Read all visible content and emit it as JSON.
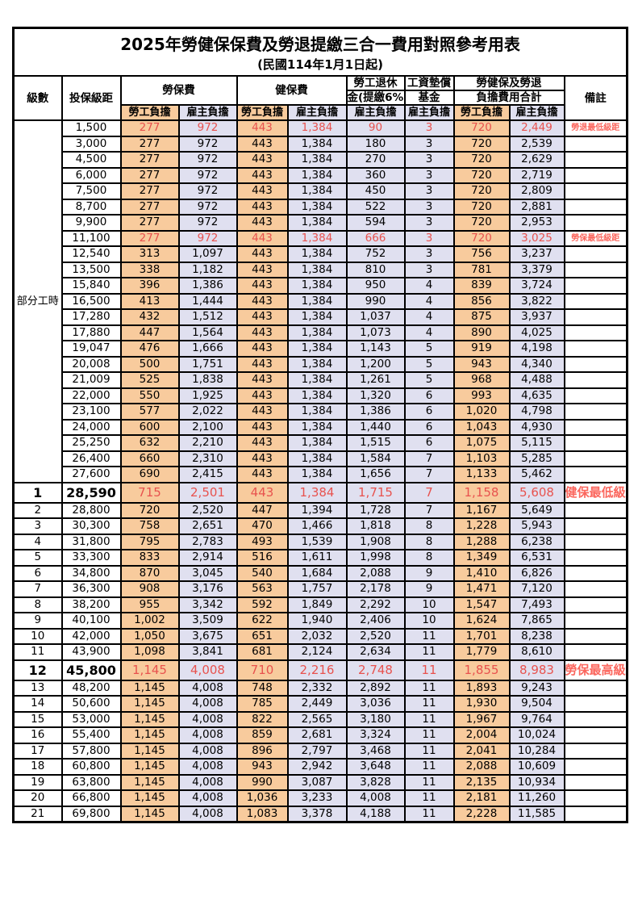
{
  "title": "2025年勞健保保費及勞退提繳三合一費用對照參考用表",
  "subtitle": "(民國114年1月1日起)",
  "header": {
    "level": "級數",
    "bracket": "投保級距",
    "labor_ins": "勞保費",
    "health_ins": "健保費",
    "pension_line1": "勞工退休",
    "pension_line2": "金(提繳6%)",
    "wage_fund_line1": "工資墊償",
    "wage_fund_line2": "基金",
    "total_line1": "勞健保及勞退",
    "total_line2": "負擔費用合計",
    "remark": "備註",
    "employee": "勞工負擔",
    "employer": "雇主負擔"
  },
  "part_time": {
    "label": "部分工時",
    "rowspan": 23
  },
  "colors": {
    "employee_bg": "#f8cb9d",
    "employer_bg": "#e0e0f0",
    "highlight_number": "#e8524e",
    "remark_red": "#fb675e",
    "border": "#000000"
  },
  "rows": [
    {
      "level": "",
      "c": [
        "1,500",
        "277",
        "972",
        "443",
        "1,384",
        "90",
        "3",
        "720",
        "2,449"
      ],
      "remark": "勞退最低級距",
      "red": true,
      "big": false
    },
    {
      "level": "",
      "c": [
        "3,000",
        "277",
        "972",
        "443",
        "1,384",
        "180",
        "3",
        "720",
        "2,539"
      ],
      "remark": "",
      "red": false,
      "big": false
    },
    {
      "level": "",
      "c": [
        "4,500",
        "277",
        "972",
        "443",
        "1,384",
        "270",
        "3",
        "720",
        "2,629"
      ],
      "remark": "",
      "red": false,
      "big": false
    },
    {
      "level": "",
      "c": [
        "6,000",
        "277",
        "972",
        "443",
        "1,384",
        "360",
        "3",
        "720",
        "2,719"
      ],
      "remark": "",
      "red": false,
      "big": false
    },
    {
      "level": "",
      "c": [
        "7,500",
        "277",
        "972",
        "443",
        "1,384",
        "450",
        "3",
        "720",
        "2,809"
      ],
      "remark": "",
      "red": false,
      "big": false
    },
    {
      "level": "",
      "c": [
        "8,700",
        "277",
        "972",
        "443",
        "1,384",
        "522",
        "3",
        "720",
        "2,881"
      ],
      "remark": "",
      "red": false,
      "big": false
    },
    {
      "level": "",
      "c": [
        "9,900",
        "277",
        "972",
        "443",
        "1,384",
        "594",
        "3",
        "720",
        "2,953"
      ],
      "remark": "",
      "red": false,
      "big": false
    },
    {
      "level": "",
      "c": [
        "11,100",
        "277",
        "972",
        "443",
        "1,384",
        "666",
        "3",
        "720",
        "3,025"
      ],
      "remark": "勞保最低級距",
      "red": true,
      "big": false
    },
    {
      "level": "",
      "c": [
        "12,540",
        "313",
        "1,097",
        "443",
        "1,384",
        "752",
        "3",
        "756",
        "3,237"
      ],
      "remark": "",
      "red": false,
      "big": false
    },
    {
      "level": "",
      "c": [
        "13,500",
        "338",
        "1,182",
        "443",
        "1,384",
        "810",
        "3",
        "781",
        "3,379"
      ],
      "remark": "",
      "red": false,
      "big": false
    },
    {
      "level": "",
      "c": [
        "15,840",
        "396",
        "1,386",
        "443",
        "1,384",
        "950",
        "4",
        "839",
        "3,724"
      ],
      "remark": "",
      "red": false,
      "big": false
    },
    {
      "level": "",
      "c": [
        "16,500",
        "413",
        "1,444",
        "443",
        "1,384",
        "990",
        "4",
        "856",
        "3,822"
      ],
      "remark": "",
      "red": false,
      "big": false
    },
    {
      "level": "",
      "c": [
        "17,280",
        "432",
        "1,512",
        "443",
        "1,384",
        "1,037",
        "4",
        "875",
        "3,937"
      ],
      "remark": "",
      "red": false,
      "big": false
    },
    {
      "level": "",
      "c": [
        "17,880",
        "447",
        "1,564",
        "443",
        "1,384",
        "1,073",
        "4",
        "890",
        "4,025"
      ],
      "remark": "",
      "red": false,
      "big": false
    },
    {
      "level": "",
      "c": [
        "19,047",
        "476",
        "1,666",
        "443",
        "1,384",
        "1,143",
        "5",
        "919",
        "4,198"
      ],
      "remark": "",
      "red": false,
      "big": false
    },
    {
      "level": "",
      "c": [
        "20,008",
        "500",
        "1,751",
        "443",
        "1,384",
        "1,200",
        "5",
        "943",
        "4,340"
      ],
      "remark": "",
      "red": false,
      "big": false
    },
    {
      "level": "",
      "c": [
        "21,009",
        "525",
        "1,838",
        "443",
        "1,384",
        "1,261",
        "5",
        "968",
        "4,488"
      ],
      "remark": "",
      "red": false,
      "big": false
    },
    {
      "level": "",
      "c": [
        "22,000",
        "550",
        "1,925",
        "443",
        "1,384",
        "1,320",
        "6",
        "993",
        "4,635"
      ],
      "remark": "",
      "red": false,
      "big": false
    },
    {
      "level": "",
      "c": [
        "23,100",
        "577",
        "2,022",
        "443",
        "1,384",
        "1,386",
        "6",
        "1,020",
        "4,798"
      ],
      "remark": "",
      "red": false,
      "big": false
    },
    {
      "level": "",
      "c": [
        "24,000",
        "600",
        "2,100",
        "443",
        "1,384",
        "1,440",
        "6",
        "1,043",
        "4,930"
      ],
      "remark": "",
      "red": false,
      "big": false
    },
    {
      "level": "",
      "c": [
        "25,250",
        "632",
        "2,210",
        "443",
        "1,384",
        "1,515",
        "6",
        "1,075",
        "5,115"
      ],
      "remark": "",
      "red": false,
      "big": false
    },
    {
      "level": "",
      "c": [
        "26,400",
        "660",
        "2,310",
        "443",
        "1,384",
        "1,584",
        "7",
        "1,103",
        "5,285"
      ],
      "remark": "",
      "red": false,
      "big": false
    },
    {
      "level": "",
      "c": [
        "27,600",
        "690",
        "2,415",
        "443",
        "1,384",
        "1,656",
        "7",
        "1,133",
        "5,462"
      ],
      "remark": "",
      "red": false,
      "big": false
    },
    {
      "level": "1",
      "c": [
        "28,590",
        "715",
        "2,501",
        "443",
        "1,384",
        "1,715",
        "7",
        "1,158",
        "5,608"
      ],
      "remark": "健保最低級距",
      "red": true,
      "big": true
    },
    {
      "level": "2",
      "c": [
        "28,800",
        "720",
        "2,520",
        "447",
        "1,394",
        "1,728",
        "7",
        "1,167",
        "5,649"
      ],
      "remark": "",
      "red": false,
      "big": false
    },
    {
      "level": "3",
      "c": [
        "30,300",
        "758",
        "2,651",
        "470",
        "1,466",
        "1,818",
        "8",
        "1,228",
        "5,943"
      ],
      "remark": "",
      "red": false,
      "big": false
    },
    {
      "level": "4",
      "c": [
        "31,800",
        "795",
        "2,783",
        "493",
        "1,539",
        "1,908",
        "8",
        "1,288",
        "6,238"
      ],
      "remark": "",
      "red": false,
      "big": false
    },
    {
      "level": "5",
      "c": [
        "33,300",
        "833",
        "2,914",
        "516",
        "1,611",
        "1,998",
        "8",
        "1,349",
        "6,531"
      ],
      "remark": "",
      "red": false,
      "big": false
    },
    {
      "level": "6",
      "c": [
        "34,800",
        "870",
        "3,045",
        "540",
        "1,684",
        "2,088",
        "9",
        "1,410",
        "6,826"
      ],
      "remark": "",
      "red": false,
      "big": false
    },
    {
      "level": "7",
      "c": [
        "36,300",
        "908",
        "3,176",
        "563",
        "1,757",
        "2,178",
        "9",
        "1,471",
        "7,120"
      ],
      "remark": "",
      "red": false,
      "big": false
    },
    {
      "level": "8",
      "c": [
        "38,200",
        "955",
        "3,342",
        "592",
        "1,849",
        "2,292",
        "10",
        "1,547",
        "7,493"
      ],
      "remark": "",
      "red": false,
      "big": false
    },
    {
      "level": "9",
      "c": [
        "40,100",
        "1,002",
        "3,509",
        "622",
        "1,940",
        "2,406",
        "10",
        "1,624",
        "7,865"
      ],
      "remark": "",
      "red": false,
      "big": false
    },
    {
      "level": "10",
      "c": [
        "42,000",
        "1,050",
        "3,675",
        "651",
        "2,032",
        "2,520",
        "11",
        "1,701",
        "8,238"
      ],
      "remark": "",
      "red": false,
      "big": false
    },
    {
      "level": "11",
      "c": [
        "43,900",
        "1,098",
        "3,841",
        "681",
        "2,124",
        "2,634",
        "11",
        "1,779",
        "8,610"
      ],
      "remark": "",
      "red": false,
      "big": false
    },
    {
      "level": "12",
      "c": [
        "45,800",
        "1,145",
        "4,008",
        "710",
        "2,216",
        "2,748",
        "11",
        "1,855",
        "8,983"
      ],
      "remark": "勞保最高級距",
      "red": true,
      "big": true
    },
    {
      "level": "13",
      "c": [
        "48,200",
        "1,145",
        "4,008",
        "748",
        "2,332",
        "2,892",
        "11",
        "1,893",
        "9,243"
      ],
      "remark": "",
      "red": false,
      "big": false
    },
    {
      "level": "14",
      "c": [
        "50,600",
        "1,145",
        "4,008",
        "785",
        "2,449",
        "3,036",
        "11",
        "1,930",
        "9,504"
      ],
      "remark": "",
      "red": false,
      "big": false
    },
    {
      "level": "15",
      "c": [
        "53,000",
        "1,145",
        "4,008",
        "822",
        "2,565",
        "3,180",
        "11",
        "1,967",
        "9,764"
      ],
      "remark": "",
      "red": false,
      "big": false
    },
    {
      "level": "16",
      "c": [
        "55,400",
        "1,145",
        "4,008",
        "859",
        "2,681",
        "3,324",
        "11",
        "2,004",
        "10,024"
      ],
      "remark": "",
      "red": false,
      "big": false
    },
    {
      "level": "17",
      "c": [
        "57,800",
        "1,145",
        "4,008",
        "896",
        "2,797",
        "3,468",
        "11",
        "2,041",
        "10,284"
      ],
      "remark": "",
      "red": false,
      "big": false
    },
    {
      "level": "18",
      "c": [
        "60,800",
        "1,145",
        "4,008",
        "943",
        "2,942",
        "3,648",
        "11",
        "2,088",
        "10,609"
      ],
      "remark": "",
      "red": false,
      "big": false
    },
    {
      "level": "19",
      "c": [
        "63,800",
        "1,145",
        "4,008",
        "990",
        "3,087",
        "3,828",
        "11",
        "2,135",
        "10,934"
      ],
      "remark": "",
      "red": false,
      "big": false
    },
    {
      "level": "20",
      "c": [
        "66,800",
        "1,145",
        "4,008",
        "1,036",
        "3,233",
        "4,008",
        "11",
        "2,181",
        "11,260"
      ],
      "remark": "",
      "red": false,
      "big": false
    },
    {
      "level": "21",
      "c": [
        "69,800",
        "1,145",
        "4,008",
        "1,083",
        "3,378",
        "4,188",
        "11",
        "2,228",
        "11,585"
      ],
      "remark": "",
      "red": false,
      "big": false
    }
  ]
}
